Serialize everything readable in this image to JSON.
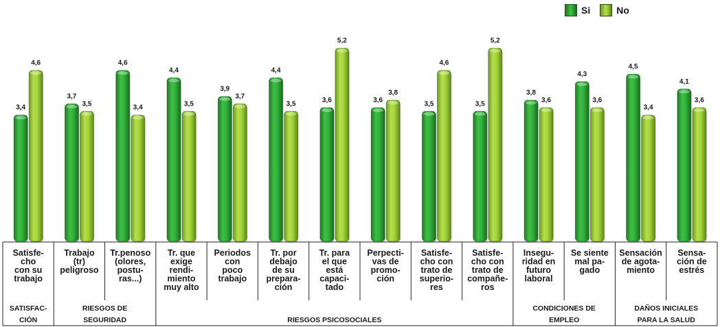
{
  "chart_data": {
    "type": "bar",
    "legend_position": "top-right",
    "grid": false,
    "ylim": [
      0,
      6
    ],
    "series": [
      {
        "name": "Si",
        "color": "#2ea836",
        "values": [
          3.4,
          3.7,
          4.6,
          4.4,
          3.9,
          4.4,
          3.6,
          3.6,
          3.5,
          3.5,
          3.8,
          4.3,
          4.5,
          4.1
        ]
      },
      {
        "name": "No",
        "color": "#9ccd3a",
        "values": [
          4.6,
          3.5,
          3.4,
          3.5,
          3.7,
          3.5,
          5.2,
          3.8,
          4.6,
          5.2,
          3.6,
          3.6,
          3.4,
          3.6
        ]
      }
    ],
    "value_labels": {
      "Si": [
        "3,4",
        "3,7",
        "4,6",
        "4,4",
        "3,9",
        "4,4",
        "3,6",
        "3,6",
        "3,5",
        "3,5",
        "3,8",
        "4,3",
        "4,5",
        "4,1"
      ],
      "No": [
        "4,6",
        "3,5",
        "3,4",
        "3,5",
        "3,7",
        "3,5",
        "5,2",
        "3,8",
        "4,6",
        "5,2",
        "3,6",
        "3,6",
        "3,4",
        "3,6"
      ]
    },
    "categories": [
      [
        "Satisfe-",
        "cho",
        "con su",
        "trabajo"
      ],
      [
        "Trabajo",
        "(tr)",
        "peligroso"
      ],
      [
        "Tr.penoso",
        "(olores,",
        "postu-",
        "ras...)"
      ],
      [
        "Tr. que",
        "exige",
        "rendi-",
        "miento",
        "muy alto"
      ],
      [
        "Periodos",
        "con",
        "poco",
        "trabajo"
      ],
      [
        "Tr. por",
        "debajo",
        "de su",
        "prepara-",
        "ción"
      ],
      [
        "Tr. para",
        "el que",
        "está",
        "capaci-",
        "tado"
      ],
      [
        "Perpecti-",
        "vas de",
        "promo-",
        "ción"
      ],
      [
        "Satisfe-",
        "cho con",
        "trato de",
        "superio-",
        "res"
      ],
      [
        "Satisfe-",
        "cho con",
        "trato de",
        "compañe-",
        "ros"
      ],
      [
        "Insegu-",
        "ridad en",
        "futuro",
        "laboral"
      ],
      [
        "Se siente",
        "mal pa-",
        "gado"
      ],
      [
        "Sensación",
        "de agota-",
        "miento"
      ],
      [
        "Sensa-",
        "ción de",
        "estrés"
      ]
    ],
    "groups": [
      {
        "label": [
          "SATISFAC-",
          "CIÓN"
        ],
        "span": [
          0,
          0
        ]
      },
      {
        "label": [
          "RIESGOS DE",
          "SEGURIDAD"
        ],
        "span": [
          1,
          2
        ]
      },
      {
        "label": [
          "RIESGOS PSICOSOCIALES"
        ],
        "span": [
          3,
          9
        ]
      },
      {
        "label": [
          "CONDICIONES DE",
          "EMPLEO"
        ],
        "span": [
          10,
          11
        ]
      },
      {
        "label": [
          "DAÑOS INICIALES",
          "PARA LA SALUD"
        ],
        "span": [
          12,
          13
        ]
      }
    ]
  }
}
